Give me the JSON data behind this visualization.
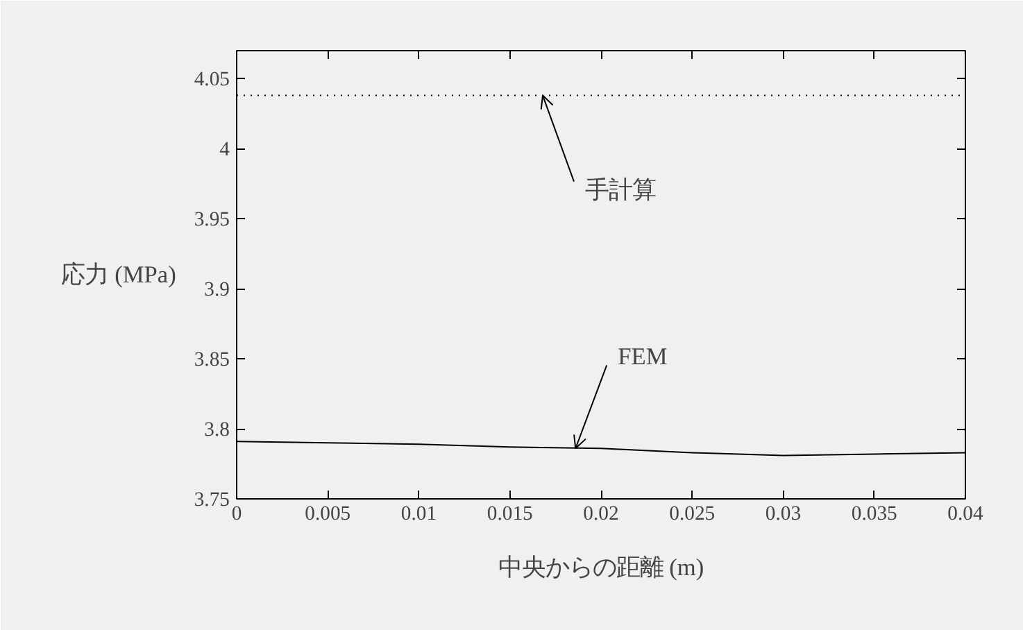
{
  "chart_data": {
    "type": "line",
    "xlabel": "中央からの距離 (m)",
    "ylabel": "応力 (MPa)",
    "xlim": [
      0,
      0.04
    ],
    "xticks": [
      0,
      0.005,
      0.01,
      0.015,
      0.02,
      0.025,
      0.03,
      0.035,
      0.04
    ],
    "ylim": [
      3.75,
      4.07
    ],
    "yticks": [
      3.75,
      3.8,
      3.85,
      3.9,
      3.95,
      4,
      4.05
    ],
    "grid": false,
    "series": [
      {
        "color": "#000000",
        "line_style": "dotted",
        "x": [
          0,
          0.04
        ],
        "values": [
          4.038,
          4.038
        ]
      },
      {
        "color": "#000000",
        "line_style": "solid",
        "x": [
          0,
          0.005,
          0.01,
          0.015,
          0.02,
          0.025,
          0.03,
          0.035,
          0.04
        ],
        "values": [
          3.791,
          3.79,
          3.789,
          3.787,
          3.786,
          3.783,
          3.781,
          3.782,
          3.783
        ]
      }
    ],
    "annotations": [
      {
        "text": "手計算",
        "x": 0.0168,
        "y": 4.038
      },
      {
        "text": "FEM",
        "x": 0.0186,
        "y": 3.786
      }
    ]
  }
}
